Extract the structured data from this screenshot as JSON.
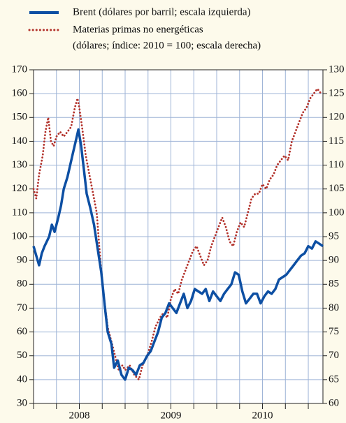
{
  "chart_data": {
    "type": "line",
    "legend_note": "(dólares; índice: 2010 = 100; escala derecha)",
    "xlim": [
      2008.0,
      2011.16
    ],
    "xticks": [
      {
        "value": 2008.5,
        "label": "2008"
      },
      {
        "value": 2009.5,
        "label": "2009"
      },
      {
        "value": 2010.5,
        "label": "2010"
      }
    ],
    "xgrid": [
      2008.0,
      2008.25,
      2008.5,
      2008.75,
      2009.0,
      2009.25,
      2009.5,
      2009.75,
      2010.0,
      2010.25,
      2010.5,
      2010.75,
      2011.0
    ],
    "ylim": [
      30,
      170
    ],
    "yticks": [
      30,
      40,
      50,
      60,
      70,
      80,
      90,
      100,
      110,
      120,
      130,
      140,
      150,
      160,
      170
    ],
    "y2lim": [
      60,
      130
    ],
    "y2ticks": [
      60,
      65,
      70,
      75,
      80,
      85,
      90,
      95,
      100,
      105,
      110,
      115,
      120,
      125,
      130
    ],
    "grid": true,
    "series": [
      {
        "name": "Brent (dólares por barril; escala izquierda)",
        "color": "#0d4fa3",
        "axis": "y",
        "style": "solid",
        "x": [
          2008.0,
          2008.03,
          2008.06,
          2008.09,
          2008.12,
          2008.17,
          2008.2,
          2008.23,
          2008.27,
          2008.3,
          2008.33,
          2008.37,
          2008.4,
          2008.43,
          2008.46,
          2008.49,
          2008.52,
          2008.55,
          2008.58,
          2008.62,
          2008.66,
          2008.7,
          2008.74,
          2008.78,
          2008.81,
          2008.85,
          2008.88,
          2008.92,
          2008.96,
          2009.0,
          2009.04,
          2009.08,
          2009.12,
          2009.16,
          2009.2,
          2009.24,
          2009.28,
          2009.32,
          2009.36,
          2009.4,
          2009.44,
          2009.48,
          2009.52,
          2009.56,
          2009.6,
          2009.64,
          2009.68,
          2009.72,
          2009.76,
          2009.8,
          2009.84,
          2009.88,
          2009.92,
          2009.96,
          2010.0,
          2010.04,
          2010.08,
          2010.12,
          2010.16,
          2010.2,
          2010.24,
          2010.28,
          2010.32,
          2010.36,
          2010.4,
          2010.44,
          2010.48,
          2010.52,
          2010.56,
          2010.6,
          2010.64,
          2010.68,
          2010.72,
          2010.76,
          2010.8,
          2010.84,
          2010.88,
          2010.92,
          2010.96,
          2011.0,
          2011.04,
          2011.08,
          2011.12,
          2011.16
        ],
        "values": [
          96,
          92,
          88,
          93,
          96,
          100,
          105,
          102,
          108,
          113,
          120,
          125,
          130,
          135,
          140,
          145,
          138,
          128,
          118,
          112,
          105,
          95,
          85,
          70,
          60,
          55,
          45,
          48,
          42,
          40,
          45,
          44,
          42,
          46,
          47,
          50,
          52,
          56,
          60,
          66,
          68,
          72,
          70,
          68,
          72,
          76,
          70,
          73,
          78,
          77,
          76,
          78,
          73,
          77,
          75,
          73,
          76,
          78,
          80,
          85,
          84,
          77,
          72,
          74,
          76,
          76,
          72,
          75,
          77,
          76,
          78,
          82,
          83,
          84,
          86,
          88,
          90,
          92,
          93,
          96,
          95,
          98,
          97,
          96
        ]
      },
      {
        "name": "Materias primas no energéticas",
        "color": "#b3322b",
        "axis": "y2",
        "style": "dotted",
        "x": [
          2008.0,
          2008.03,
          2008.06,
          2008.1,
          2008.13,
          2008.16,
          2008.19,
          2008.22,
          2008.25,
          2008.29,
          2008.33,
          2008.37,
          2008.41,
          2008.45,
          2008.48,
          2008.5,
          2008.53,
          2008.57,
          2008.61,
          2008.65,
          2008.69,
          2008.73,
          2008.77,
          2008.81,
          2008.85,
          2008.89,
          2008.93,
          2008.97,
          2009.0,
          2009.05,
          2009.1,
          2009.15,
          2009.19,
          2009.24,
          2009.29,
          2009.33,
          2009.38,
          2009.42,
          2009.46,
          2009.5,
          2009.54,
          2009.58,
          2009.62,
          2009.66,
          2009.7,
          2009.74,
          2009.78,
          2009.82,
          2009.86,
          2009.9,
          2009.94,
          2009.98,
          2010.02,
          2010.06,
          2010.1,
          2010.14,
          2010.18,
          2010.22,
          2010.26,
          2010.3,
          2010.34,
          2010.38,
          2010.42,
          2010.46,
          2010.5,
          2010.54,
          2010.58,
          2010.62,
          2010.66,
          2010.7,
          2010.74,
          2010.78,
          2010.82,
          2010.86,
          2010.9,
          2010.94,
          2010.98,
          2011.02,
          2011.06,
          2011.1,
          2011.14
        ],
        "values": [
          105,
          103,
          108,
          112,
          117,
          120,
          115,
          114,
          116,
          117,
          116,
          117,
          118,
          122,
          124,
          122,
          118,
          112,
          108,
          104,
          100,
          90,
          82,
          76,
          73,
          70,
          67,
          68,
          67,
          68,
          66,
          65,
          68,
          70,
          73,
          76,
          78,
          79,
          78,
          82,
          84,
          83,
          86,
          88,
          90,
          92,
          93,
          91,
          89,
          90,
          93,
          95,
          97,
          99,
          97,
          94,
          93,
          96,
          98,
          97,
          100,
          103,
          104,
          104,
          106,
          105,
          107,
          108,
          110,
          111,
          112,
          111,
          115,
          117,
          119,
          121,
          122,
          124,
          125,
          126,
          125
        ]
      }
    ]
  }
}
